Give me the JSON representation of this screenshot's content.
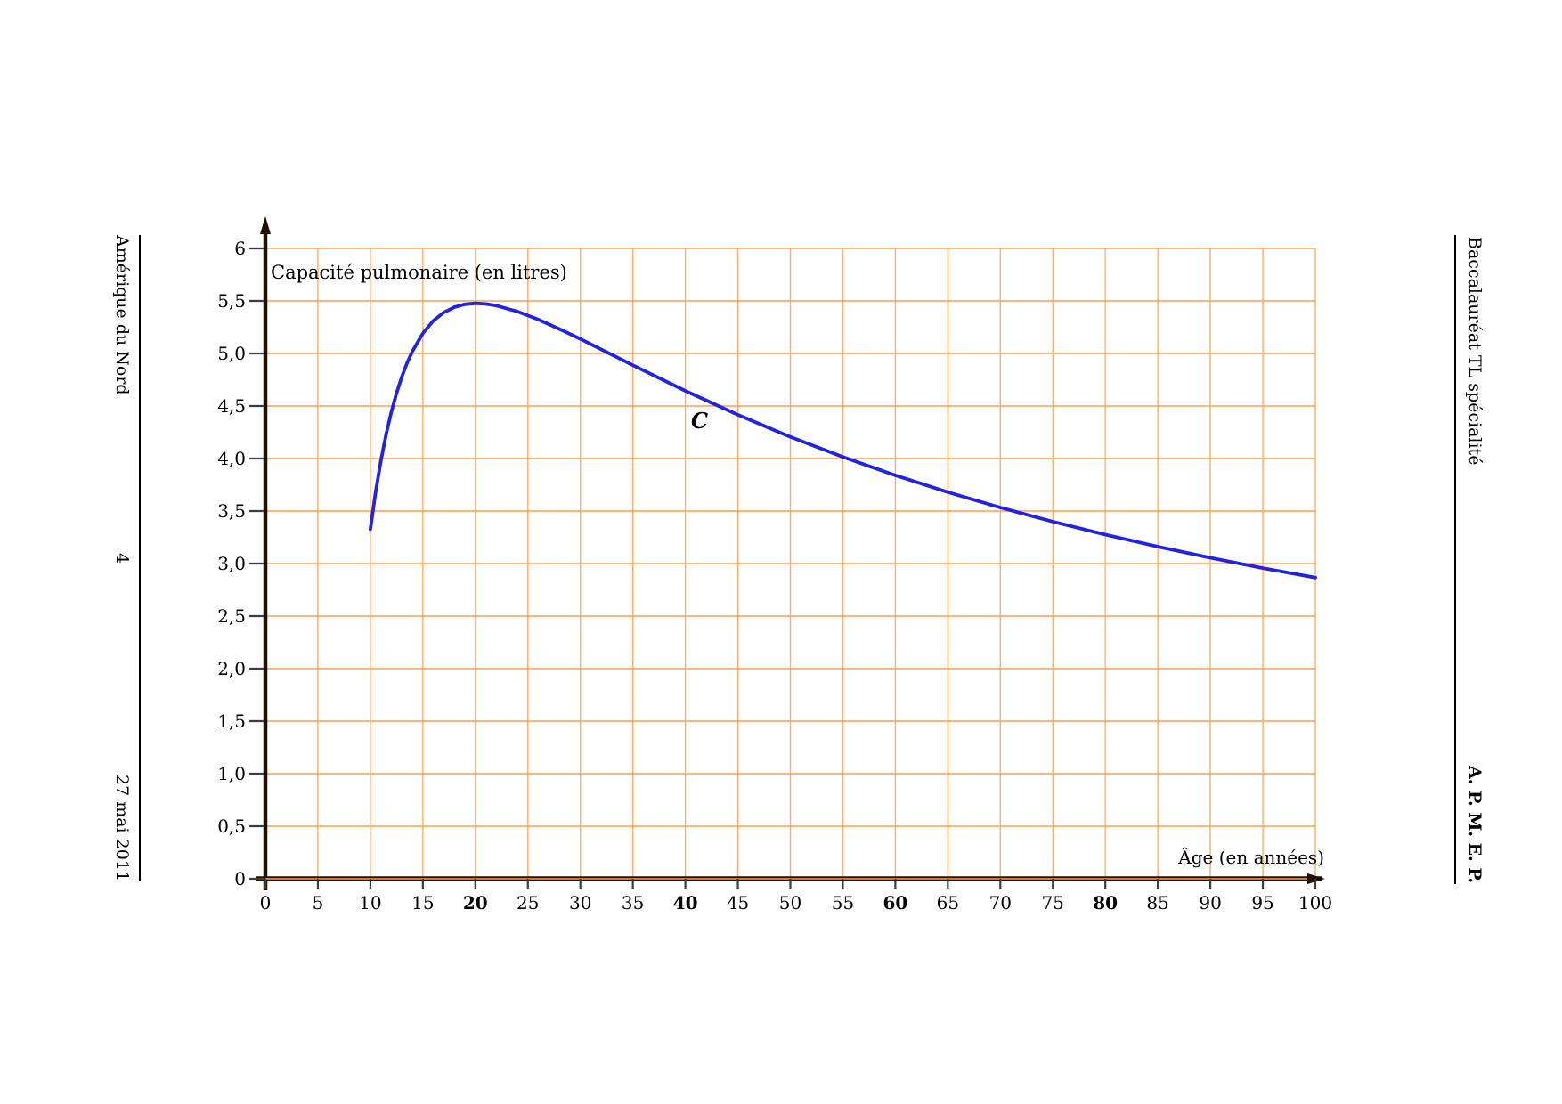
{
  "page": {
    "left_margin": {
      "header": "Amérique du Nord",
      "page_number": "4",
      "footer": "27 mai 2011"
    },
    "right_margin": {
      "header": "Baccalauréat TL spécialité",
      "footer": "A. P. M. E. P."
    }
  },
  "chart_data": {
    "type": "line",
    "title": "Capacité pulmonaire (en litres)",
    "xlabel": "Âge (en années)",
    "ylabel": "Capacité pulmonaire (en litres)",
    "curve_label": "C",
    "xlim": [
      0,
      100
    ],
    "ylim": [
      0,
      6
    ],
    "grid": true,
    "legend_position": "none",
    "colors": {
      "curve": "#2323dd",
      "grid": "#ffa14f",
      "axis": "#201000",
      "tick": "#3c3c3c",
      "text": "#000000"
    },
    "x_tick_values": [
      0,
      5,
      10,
      15,
      20,
      25,
      30,
      35,
      40,
      45,
      50,
      55,
      60,
      65,
      70,
      75,
      80,
      85,
      90,
      95,
      100
    ],
    "x_tick_labels": [
      "0",
      "5",
      "10",
      "15",
      "20",
      "25",
      "30",
      "35",
      "40",
      "45",
      "50",
      "55",
      "60",
      "65",
      "70",
      "75",
      "80",
      "85",
      "90",
      "95",
      "100"
    ],
    "x_ticks_bold": [
      20,
      40,
      60,
      80
    ],
    "y_tick_values": [
      0,
      0.5,
      1,
      1.5,
      2,
      2.5,
      3,
      3.5,
      4,
      4.5,
      5,
      5.5,
      6
    ],
    "y_tick_labels": [
      "0",
      "0,5",
      "1,0",
      "1,5",
      "2,0",
      "2,5",
      "3,0",
      "3,5",
      "4,0",
      "4,5",
      "5,0",
      "5,5",
      "6"
    ],
    "series": [
      {
        "name": "capacite-pulmonaire",
        "label": "C",
        "x": [
          10,
          10.5,
          11,
          11.5,
          12,
          12.5,
          13,
          13.5,
          14,
          15,
          16,
          17,
          18,
          19,
          20,
          21,
          22,
          24,
          26,
          28,
          30,
          33,
          35,
          40,
          45,
          50,
          55,
          60,
          65,
          70,
          75,
          80,
          85,
          90,
          95,
          100
        ],
        "y": [
          3.328,
          3.681,
          3.979,
          4.231,
          4.445,
          4.626,
          4.78,
          4.911,
          5.021,
          5.192,
          5.312,
          5.391,
          5.441,
          5.468,
          5.477,
          5.471,
          5.455,
          5.399,
          5.323,
          5.233,
          5.138,
          4.988,
          4.888,
          4.644,
          4.416,
          4.206,
          4.015,
          3.84,
          3.68,
          3.533,
          3.399,
          3.275,
          3.161,
          3.055,
          2.957,
          2.866
        ]
      }
    ]
  }
}
